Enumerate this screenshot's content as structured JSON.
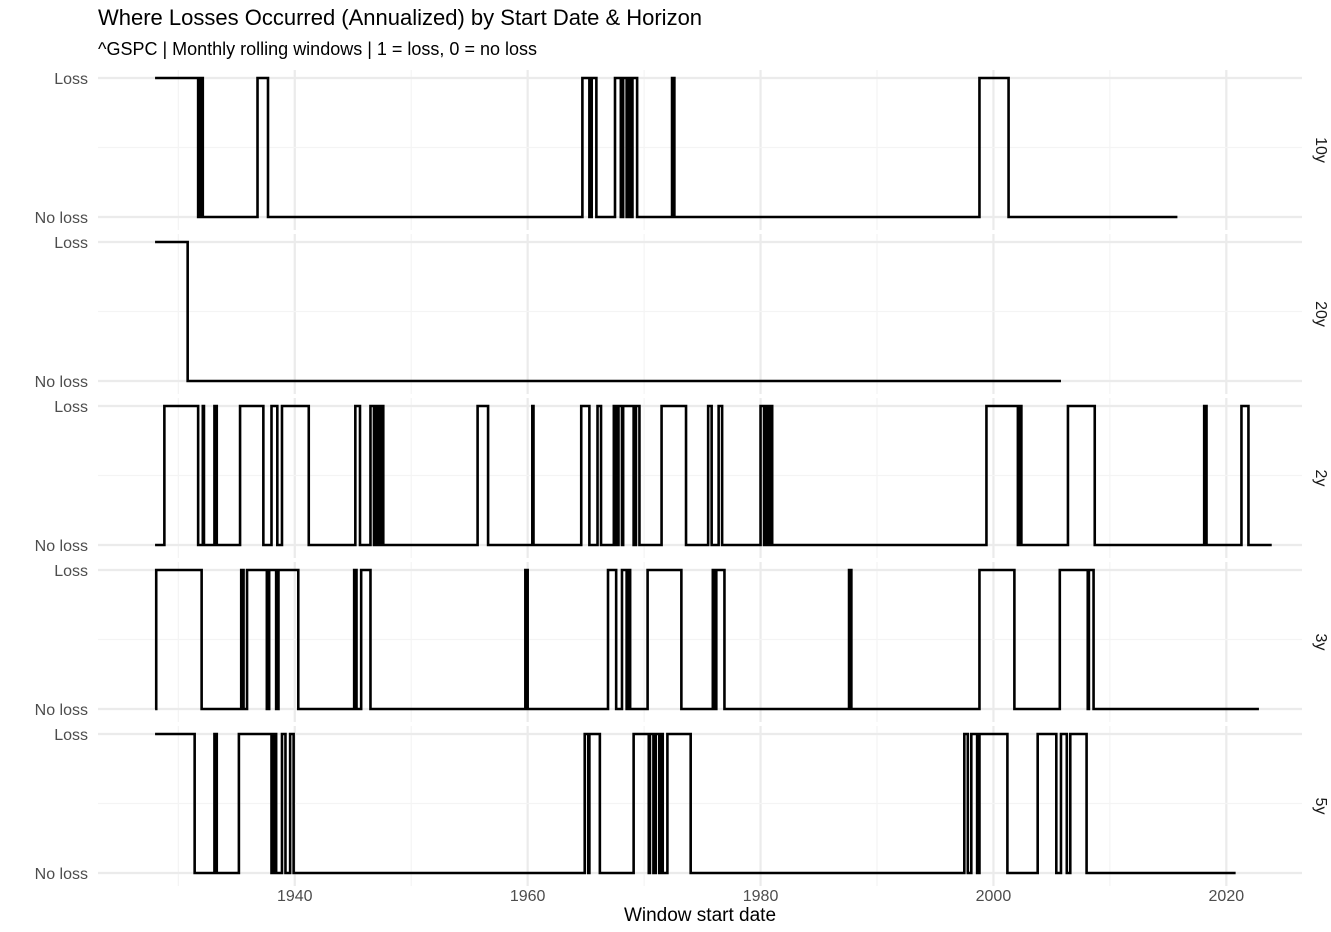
{
  "chart_data": {
    "type": "line",
    "title": "Where Losses Occurred (Annualized) by Start Date & Horizon",
    "subtitle": "^GSPC | Monthly rolling windows | 1 = loss, 0 = no loss",
    "xlabel": "Window start date",
    "ylabel": "",
    "x_ticks": [
      1940,
      1960,
      1980,
      2000,
      2020
    ],
    "xlim": [
      1923.1,
      2026.5
    ],
    "y_tick_labels": {
      "1": "Loss",
      "0": "No loss"
    },
    "ylim": [
      0,
      1
    ],
    "grid": true,
    "step": true,
    "facets": [
      {
        "label": "10y",
        "segments": [
          [
            1928.0,
            1
          ],
          [
            1931.7,
            0
          ],
          [
            1931.8,
            1
          ],
          [
            1931.9,
            0
          ],
          [
            1932.0,
            1
          ],
          [
            1932.1,
            0
          ],
          [
            1936.8,
            1
          ],
          [
            1937.7,
            0
          ],
          [
            1964.7,
            1
          ],
          [
            1965.3,
            0
          ],
          [
            1965.5,
            1
          ],
          [
            1965.9,
            0
          ],
          [
            1967.5,
            1
          ],
          [
            1968.0,
            0
          ],
          [
            1968.2,
            1
          ],
          [
            1968.5,
            0
          ],
          [
            1968.7,
            1
          ],
          [
            1968.9,
            0
          ],
          [
            1969.0,
            1
          ],
          [
            1969.4,
            0
          ],
          [
            1972.4,
            1
          ],
          [
            1972.6,
            0
          ],
          [
            1998.8,
            1
          ],
          [
            2001.3,
            0
          ],
          [
            2015.8,
            0
          ]
        ]
      },
      {
        "label": "20y",
        "segments": [
          [
            1928.0,
            1
          ],
          [
            1930.8,
            0
          ],
          [
            2005.8,
            0
          ]
        ]
      },
      {
        "label": "2y",
        "segments": [
          [
            1928.0,
            0
          ],
          [
            1928.8,
            1
          ],
          [
            1931.7,
            0
          ],
          [
            1932.1,
            1
          ],
          [
            1932.2,
            0
          ],
          [
            1933.1,
            1
          ],
          [
            1933.3,
            0
          ],
          [
            1935.3,
            1
          ],
          [
            1937.3,
            0
          ],
          [
            1938.0,
            1
          ],
          [
            1938.5,
            0
          ],
          [
            1938.9,
            1
          ],
          [
            1941.2,
            0
          ],
          [
            1945.2,
            1
          ],
          [
            1945.6,
            0
          ],
          [
            1946.5,
            1
          ],
          [
            1946.8,
            0
          ],
          [
            1947.0,
            1
          ],
          [
            1947.2,
            0
          ],
          [
            1947.4,
            1
          ],
          [
            1947.6,
            0
          ],
          [
            1955.7,
            1
          ],
          [
            1956.6,
            0
          ],
          [
            1960.4,
            1
          ],
          [
            1960.5,
            0
          ],
          [
            1964.6,
            1
          ],
          [
            1965.3,
            0
          ],
          [
            1966.0,
            1
          ],
          [
            1966.3,
            0
          ],
          [
            1967.4,
            1
          ],
          [
            1967.6,
            0
          ],
          [
            1967.8,
            1
          ],
          [
            1968.1,
            0
          ],
          [
            1968.2,
            1
          ],
          [
            1969.1,
            0
          ],
          [
            1969.3,
            1
          ],
          [
            1969.6,
            0
          ],
          [
            1971.5,
            1
          ],
          [
            1973.6,
            0
          ],
          [
            1975.5,
            1
          ],
          [
            1975.8,
            0
          ],
          [
            1976.4,
            1
          ],
          [
            1976.7,
            0
          ],
          [
            1980.0,
            1
          ],
          [
            1980.3,
            0
          ],
          [
            1980.5,
            1
          ],
          [
            1980.7,
            0
          ],
          [
            1980.8,
            1
          ],
          [
            1981.0,
            0
          ],
          [
            1999.4,
            1
          ],
          [
            2002.1,
            0
          ],
          [
            2002.3,
            1
          ],
          [
            2002.4,
            0
          ],
          [
            2006.4,
            1
          ],
          [
            2008.7,
            0
          ],
          [
            2018.1,
            1
          ],
          [
            2018.3,
            0
          ],
          [
            2021.3,
            1
          ],
          [
            2021.9,
            0
          ],
          [
            2023.9,
            0
          ]
        ]
      },
      {
        "label": "3y",
        "segments": [
          [
            1928.0,
            0
          ],
          [
            1928.1,
            1
          ],
          [
            1932.0,
            0
          ],
          [
            1935.4,
            1
          ],
          [
            1935.6,
            0
          ],
          [
            1935.9,
            1
          ],
          [
            1937.6,
            0
          ],
          [
            1937.8,
            1
          ],
          [
            1938.4,
            0
          ],
          [
            1938.6,
            1
          ],
          [
            1940.3,
            0
          ],
          [
            1945.1,
            1
          ],
          [
            1945.3,
            0
          ],
          [
            1945.7,
            1
          ],
          [
            1946.5,
            0
          ],
          [
            1959.8,
            1
          ],
          [
            1960.0,
            0
          ],
          [
            1966.9,
            1
          ],
          [
            1967.6,
            0
          ],
          [
            1968.1,
            1
          ],
          [
            1968.5,
            0
          ],
          [
            1968.6,
            1
          ],
          [
            1968.8,
            0
          ],
          [
            1970.3,
            1
          ],
          [
            1973.2,
            0
          ],
          [
            1975.9,
            1
          ],
          [
            1976.1,
            0
          ],
          [
            1976.2,
            1
          ],
          [
            1976.9,
            0
          ],
          [
            1987.6,
            1
          ],
          [
            1987.8,
            0
          ],
          [
            1998.8,
            1
          ],
          [
            2001.8,
            0
          ],
          [
            2005.7,
            1
          ],
          [
            2008.1,
            0
          ],
          [
            2008.2,
            1
          ],
          [
            2008.6,
            0
          ],
          [
            2022.8,
            0
          ]
        ]
      },
      {
        "label": "5y",
        "segments": [
          [
            1928.0,
            1
          ],
          [
            1931.4,
            0
          ],
          [
            1933.1,
            1
          ],
          [
            1933.3,
            0
          ],
          [
            1935.2,
            1
          ],
          [
            1938.0,
            0
          ],
          [
            1938.2,
            1
          ],
          [
            1938.4,
            0
          ],
          [
            1938.9,
            1
          ],
          [
            1939.2,
            0
          ],
          [
            1939.6,
            1
          ],
          [
            1939.9,
            0
          ],
          [
            1964.9,
            1
          ],
          [
            1965.2,
            0
          ],
          [
            1965.3,
            1
          ],
          [
            1966.2,
            0
          ],
          [
            1969.1,
            1
          ],
          [
            1970.4,
            0
          ],
          [
            1970.5,
            1
          ],
          [
            1970.8,
            0
          ],
          [
            1971.0,
            1
          ],
          [
            1971.3,
            0
          ],
          [
            1971.5,
            1
          ],
          [
            1971.6,
            0
          ],
          [
            1972.0,
            1
          ],
          [
            1974.0,
            0
          ],
          [
            1997.5,
            1
          ],
          [
            1997.8,
            0
          ],
          [
            1998.1,
            1
          ],
          [
            1998.6,
            0
          ],
          [
            1998.8,
            1
          ],
          [
            2001.2,
            0
          ],
          [
            2003.8,
            1
          ],
          [
            2005.4,
            0
          ],
          [
            2005.8,
            1
          ],
          [
            2006.3,
            0
          ],
          [
            2006.6,
            1
          ],
          [
            2008.0,
            0
          ],
          [
            2020.8,
            0
          ]
        ]
      }
    ]
  }
}
